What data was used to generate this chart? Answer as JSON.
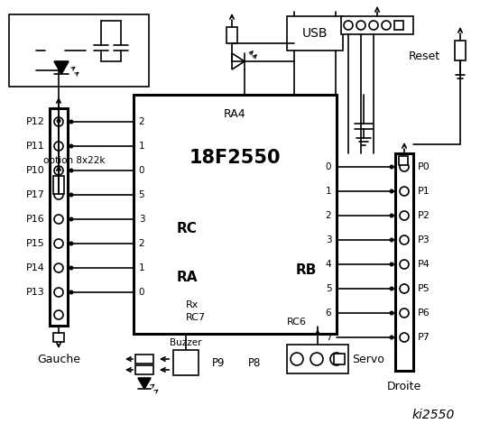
{
  "title": "ki2550",
  "bg_color": "#ffffff",
  "chip_label": "18F2550",
  "chip_sublabel": "RA4",
  "rc_label": "RC",
  "ra_label": "RA",
  "rb_label": "RB",
  "rc_pin_nums": [
    "2",
    "1",
    "0",
    "5",
    "3",
    "2",
    "1",
    "0"
  ],
  "rb_pins": [
    "0",
    "1",
    "2",
    "3",
    "4",
    "5",
    "6",
    "7"
  ],
  "left_labels": [
    "P12",
    "P11",
    "P10",
    "P17",
    "P16",
    "P15",
    "P14",
    "P13"
  ],
  "right_labels": [
    "P0",
    "P1",
    "P2",
    "P3",
    "P4",
    "P5",
    "P6",
    "P7"
  ],
  "usb_label": "USB",
  "reset_label": "Reset",
  "servo_label": "Servo",
  "buzzer_label": "Buzzer",
  "p8_label": "P8",
  "p9_label": "P9",
  "option_label": "option 8x22k",
  "gauche_label": "Gauche",
  "droite_label": "Droite",
  "rx_label": "Rx",
  "rc6_label": "RC6",
  "rc7_label": "RC7"
}
